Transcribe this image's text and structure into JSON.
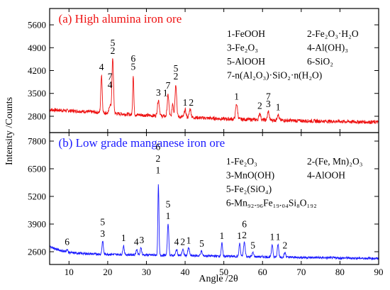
{
  "chart_data": {
    "type": "line",
    "xlabel": "Angle /2θ",
    "ylabel": "Intensity /Counts",
    "xlim": [
      5,
      90
    ],
    "xticks": [
      10,
      20,
      30,
      40,
      50,
      60,
      70,
      80,
      90
    ],
    "grid": false,
    "panels": [
      {
        "id": "a",
        "title": "(a) High alumina iron ore",
        "color": "#ee1111",
        "ylim": [
          2300,
          6100
        ],
        "yticks": [
          2800,
          3500,
          4200,
          4900,
          5600
        ],
        "baseline": [
          [
            5,
            3000
          ],
          [
            15,
            2940
          ],
          [
            25,
            2860
          ],
          [
            35,
            2800
          ],
          [
            50,
            2720
          ],
          [
            60,
            2690
          ],
          [
            70,
            2660
          ],
          [
            80,
            2640
          ],
          [
            90,
            2620
          ]
        ],
        "peaks": [
          {
            "x": 18.4,
            "y": 4080,
            "w": 0.25
          },
          {
            "x": 20.6,
            "y": 3150,
            "w": 0.3
          },
          {
            "x": 21.3,
            "y": 4580,
            "w": 0.28
          },
          {
            "x": 26.6,
            "y": 4080,
            "w": 0.2
          },
          {
            "x": 33.1,
            "y": 3300,
            "w": 0.35
          },
          {
            "x": 35.6,
            "y": 3450,
            "w": 0.3
          },
          {
            "x": 36.8,
            "y": 3200,
            "w": 0.25
          },
          {
            "x": 37.6,
            "y": 3780,
            "w": 0.3
          },
          {
            "x": 40.0,
            "y": 3000,
            "w": 0.3
          },
          {
            "x": 41.3,
            "y": 3030,
            "w": 0.3
          },
          {
            "x": 53.3,
            "y": 3180,
            "w": 0.35
          },
          {
            "x": 59.3,
            "y": 2900,
            "w": 0.3
          },
          {
            "x": 61.5,
            "y": 2950,
            "w": 0.3
          },
          {
            "x": 64.0,
            "y": 2860,
            "w": 0.3
          }
        ],
        "legend": [
          {
            "label": "1-FeOOH",
            "col": 0,
            "row": 0
          },
          {
            "label": "2-Fe₂O₃·H₂O",
            "col": 1,
            "row": 0
          },
          {
            "label": "3-Fe₂O₃",
            "col": 0,
            "row": 1
          },
          {
            "label": "4-Al(OH)₃",
            "col": 1,
            "row": 1
          },
          {
            "label": "5-AlOOH",
            "col": 0,
            "row": 2
          },
          {
            "label": "6-SiO₂",
            "col": 1,
            "row": 2
          },
          {
            "label": "7-n(Al₂O₃)·SiO₂·n(H₂O)",
            "col": 0,
            "row": 3
          }
        ],
        "annotations": [
          {
            "text": "4",
            "x": 18.4,
            "y": 4120
          },
          {
            "text": "5",
            "x": 21.3,
            "y": 4860
          },
          {
            "text": "2",
            "x": 21.3,
            "y": 4620
          },
          {
            "text": "7",
            "x": 20.6,
            "y": 3830
          },
          {
            "text": "4",
            "x": 20.6,
            "y": 3580
          },
          {
            "text": "6",
            "x": 26.6,
            "y": 4380
          },
          {
            "text": "5",
            "x": 26.6,
            "y": 4140
          },
          {
            "text": "3",
            "x": 33.1,
            "y": 3340
          },
          {
            "text": "7",
            "x": 35.6,
            "y": 3560
          },
          {
            "text": "1",
            "x": 34.9,
            "y": 3330
          },
          {
            "text": "5",
            "x": 37.6,
            "y": 4080
          },
          {
            "text": "2",
            "x": 37.6,
            "y": 3840
          },
          {
            "text": "1",
            "x": 40.0,
            "y": 3040
          },
          {
            "text": "2",
            "x": 41.6,
            "y": 3040
          },
          {
            "text": "1",
            "x": 53.3,
            "y": 3220
          },
          {
            "text": "2",
            "x": 59.3,
            "y": 2940
          },
          {
            "text": "7",
            "x": 61.5,
            "y": 3220
          },
          {
            "text": "3",
            "x": 61.5,
            "y": 2990
          },
          {
            "text": "1",
            "x": 64.0,
            "y": 2900
          }
        ]
      },
      {
        "id": "b",
        "title": "(b) Low grade manganese iron ore",
        "color": "#1a1aff",
        "ylim": [
          2000,
          8200
        ],
        "yticks": [
          2600,
          3900,
          5200,
          6500,
          7800
        ],
        "baseline": [
          [
            5,
            2850
          ],
          [
            7,
            2700
          ],
          [
            10,
            2560
          ],
          [
            15,
            2500
          ],
          [
            25,
            2460
          ],
          [
            40,
            2420
          ],
          [
            60,
            2360
          ],
          [
            75,
            2320
          ],
          [
            90,
            2280
          ]
        ],
        "peaks": [
          {
            "x": 9.5,
            "y": 2700,
            "w": 0.3
          },
          {
            "x": 18.7,
            "y": 3100,
            "w": 0.25
          },
          {
            "x": 24.1,
            "y": 2900,
            "w": 0.25
          },
          {
            "x": 27.5,
            "y": 2700,
            "w": 0.3
          },
          {
            "x": 28.6,
            "y": 2800,
            "w": 0.25
          },
          {
            "x": 33.1,
            "y": 5750,
            "w": 0.2
          },
          {
            "x": 35.6,
            "y": 3950,
            "w": 0.25
          },
          {
            "x": 37.8,
            "y": 2700,
            "w": 0.3
          },
          {
            "x": 39.4,
            "y": 2700,
            "w": 0.3
          },
          {
            "x": 40.9,
            "y": 2780,
            "w": 0.3
          },
          {
            "x": 44.2,
            "y": 2620,
            "w": 0.3
          },
          {
            "x": 49.5,
            "y": 3000,
            "w": 0.25
          },
          {
            "x": 54.1,
            "y": 3000,
            "w": 0.25
          },
          {
            "x": 55.3,
            "y": 3050,
            "w": 0.3
          },
          {
            "x": 57.5,
            "y": 2550,
            "w": 0.3
          },
          {
            "x": 62.5,
            "y": 2950,
            "w": 0.25
          },
          {
            "x": 64.0,
            "y": 2950,
            "w": 0.25
          },
          {
            "x": 65.8,
            "y": 2550,
            "w": 0.3
          }
        ],
        "legend": [
          {
            "label": "1-Fe₂O₃",
            "col": 0,
            "row": 0
          },
          {
            "label": "2-(Fe, Mn)₂O₃",
            "col": 1,
            "row": 0
          },
          {
            "label": "3-MnO(OH)",
            "col": 0,
            "row": 1
          },
          {
            "label": "4-AlOOH",
            "col": 1,
            "row": 1
          },
          {
            "label": "5-Fe₂(SiO₄)",
            "col": 0,
            "row": 2
          },
          {
            "label": "6-Mn₉₂.₉₆Fe₁₉.₀₄Si₈O₁₉₂",
            "col": 0,
            "row": 3
          }
        ],
        "annotations": [
          {
            "text": "6",
            "x": 9.5,
            "y": 2780
          },
          {
            "text": "5",
            "x": 18.7,
            "y": 3720
          },
          {
            "text": "3",
            "x": 18.7,
            "y": 3170
          },
          {
            "text": "1",
            "x": 24.1,
            "y": 2970
          },
          {
            "text": "4",
            "x": 27.4,
            "y": 2780
          },
          {
            "text": "3",
            "x": 28.8,
            "y": 2860
          },
          {
            "text": "6",
            "x": 33.0,
            "y": 7250
          },
          {
            "text": "2",
            "x": 33.0,
            "y": 6700
          },
          {
            "text": "1",
            "x": 33.0,
            "y": 6150
          },
          {
            "text": "5",
            "x": 35.6,
            "y": 4550
          },
          {
            "text": "1",
            "x": 35.6,
            "y": 4000
          },
          {
            "text": "4",
            "x": 37.8,
            "y": 2780
          },
          {
            "text": "2",
            "x": 39.4,
            "y": 2780
          },
          {
            "text": "1",
            "x": 40.9,
            "y": 2850
          },
          {
            "text": "5",
            "x": 44.3,
            "y": 2700
          },
          {
            "text": "1",
            "x": 49.5,
            "y": 3070
          },
          {
            "text": "1",
            "x": 54.0,
            "y": 3070
          },
          {
            "text": "6",
            "x": 55.3,
            "y": 3620
          },
          {
            "text": "2",
            "x": 55.3,
            "y": 3100
          },
          {
            "text": "5",
            "x": 57.5,
            "y": 2620
          },
          {
            "text": "1",
            "x": 62.5,
            "y": 3020
          },
          {
            "text": "1",
            "x": 64.0,
            "y": 3020
          },
          {
            "text": "2",
            "x": 65.8,
            "y": 2620
          }
        ]
      }
    ]
  }
}
